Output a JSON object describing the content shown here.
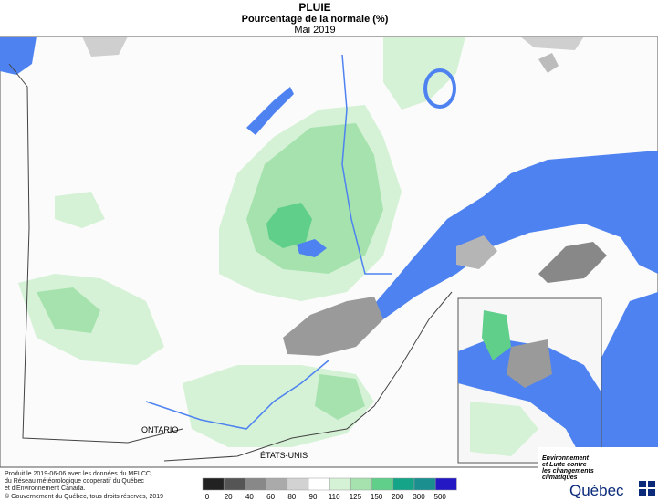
{
  "header": {
    "title": "PLUIE",
    "subtitle": "Pourcentage de la normale (%)",
    "period": "Mai 2019"
  },
  "map": {
    "labels": [
      "ONTARIO",
      "ÉTATS-UNIS"
    ]
  },
  "legend": {
    "labels": [
      "0",
      "20",
      "40",
      "60",
      "80",
      "90",
      "110",
      "125",
      "150",
      "200",
      "300",
      "500"
    ],
    "colors": [
      "#222222",
      "#555555",
      "#888888",
      "#aaaaaa",
      "#d2d2d2",
      "#ffffff",
      "#d5f2d6",
      "#a6e2ae",
      "#5fcf8a",
      "#16a488",
      "#1b8f8f",
      "#2418c4"
    ]
  },
  "credits": [
    "Produit le 2019-06-06 avec les données du MELCC,",
    "du Réseau météorologique coopératif du Québec",
    "et d'Environnement Canada.",
    "© Gouvernement du Québec, tous droits réservés, 2019"
  ],
  "logo": {
    "ministry": [
      "Environnement",
      "et Lutte contre",
      "les changements",
      "climatiques"
    ],
    "name": "Québec"
  }
}
